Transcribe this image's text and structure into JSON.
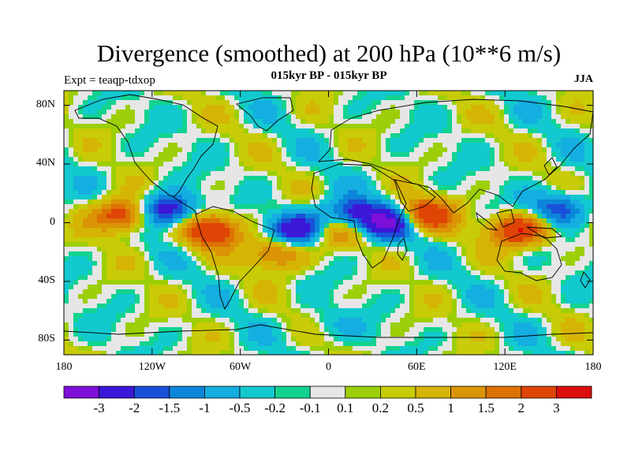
{
  "title": "Divergence (smoothed) at 200 hPa (10**6 m/s)",
  "subtitle": "015kyr BP - 015kyr BP",
  "experiment": "Expt = teaqp-tdxop",
  "season": "JJA",
  "map": {
    "projection": "cylindrical-equidistant",
    "lon_range": [
      -180,
      180
    ],
    "lat_range": [
      -90,
      90
    ],
    "lat_labels": [
      "80N",
      "40N",
      "0",
      "40S",
      "80S"
    ],
    "lat_values": [
      80,
      40,
      0,
      -40,
      -80
    ],
    "lon_labels": [
      "180",
      "120W",
      "60W",
      "0",
      "60E",
      "120E",
      "180"
    ],
    "lon_values": [
      -180,
      -120,
      -60,
      0,
      60,
      120,
      180
    ],
    "coastlines": "continental outlines"
  },
  "colorbar": {
    "colors": [
      "#7e0fd9",
      "#3c17d8",
      "#1a50d8",
      "#0c86d9",
      "#14aee0",
      "#12c9cf",
      "#13d38f",
      "#e6e6e6",
      "#9ccf07",
      "#c8cb06",
      "#d6b406",
      "#da9405",
      "#dc7204",
      "#df4504",
      "#dc0e0e"
    ],
    "labels": [
      "-3",
      "-2",
      "-1.5",
      "-1",
      "-0.5",
      "-0.2",
      "-0.1",
      "0.1",
      "0.2",
      "0.5",
      "1",
      "1.5",
      "2",
      "3"
    ],
    "levels": [
      -3,
      -2,
      -1.5,
      -1,
      -0.5,
      -0.2,
      -0.1,
      0.1,
      0.2,
      0.5,
      1,
      1.5,
      2,
      3
    ]
  },
  "field_features": [
    {
      "name": "eastern-pacific-divergence",
      "lon": -140,
      "lat": 5,
      "value": 3
    },
    {
      "name": "central-pacific-convergence",
      "lon": -110,
      "lat": 8,
      "value": -3
    },
    {
      "name": "south-america-divergence",
      "lon": -80,
      "lat": -5,
      "value": 3
    },
    {
      "name": "tropical-atlantic-convergence",
      "lon": -20,
      "lat": -5,
      "value": -3
    },
    {
      "name": "south-atlantic-divergence",
      "lon": -35,
      "lat": -20,
      "value": 2
    },
    {
      "name": "africa-convergence",
      "lon": 15,
      "lat": 5,
      "value": -2.5
    },
    {
      "name": "gulf-of-guinea-divergence",
      "lon": 5,
      "lat": -5,
      "value": 2
    },
    {
      "name": "east-africa-convergence",
      "lon": 42,
      "lat": 0,
      "value": -3
    },
    {
      "name": "arabian-sea-divergence",
      "lon": 65,
      "lat": 5,
      "value": 3
    },
    {
      "name": "maritime-continent-divergence",
      "lon": 130,
      "lat": -5,
      "value": 3
    },
    {
      "name": "west-pacific-convergence",
      "lon": 155,
      "lat": 10,
      "value": -2
    },
    {
      "name": "southern-ocean-band",
      "lon": 0,
      "lat": -70,
      "value": -0.5
    }
  ]
}
